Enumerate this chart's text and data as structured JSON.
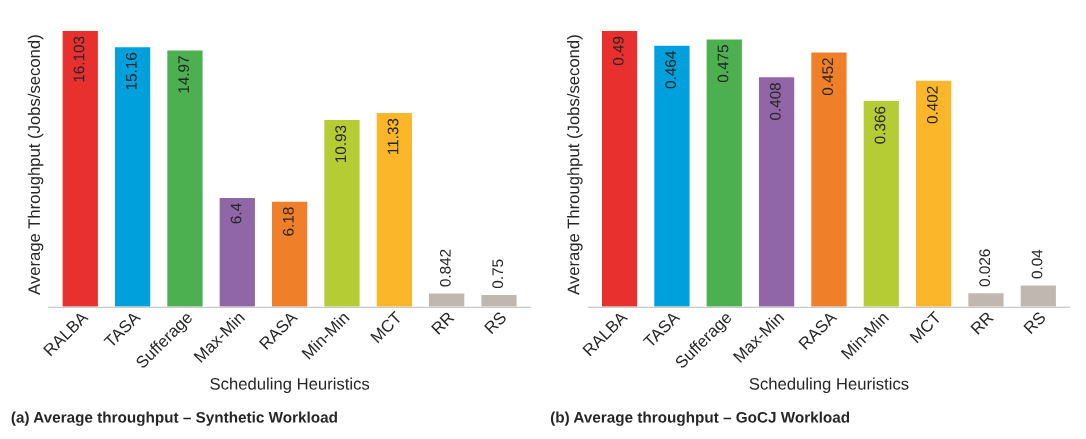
{
  "chart_data": [
    {
      "type": "bar",
      "title": "(a) Average throughput – Synthetic Workload",
      "xlabel": "Scheduling Heuristics",
      "ylabel": "Average Throughput (Jobs/second)",
      "categories": [
        "RALBA",
        "TASA",
        "Sufferage",
        "Max-Min",
        "RASA",
        "Min-Min",
        "MCT",
        "RR",
        "RS"
      ],
      "values": [
        16.103,
        15.16,
        14.97,
        6.4,
        6.18,
        10.93,
        11.33,
        0.842,
        0.75
      ],
      "colors": [
        "#e8312f",
        "#00a0dc",
        "#4caf50",
        "#9066a6",
        "#f07f2a",
        "#b5cc34",
        "#fbb62a",
        "#c0b8b0",
        "#c0b8b0"
      ],
      "data_labels": true,
      "tick_labels": "x",
      "grid": false,
      "legend": false
    },
    {
      "type": "bar",
      "title": "(b) Average throughput – GoCJ Workload",
      "xlabel": "Scheduling Heuristics",
      "ylabel": "Average Throughput (Jobs/second)",
      "categories": [
        "RALBA",
        "TASA",
        "Sufferage",
        "Max-Min",
        "RASA",
        "Min-Min",
        "MCT",
        "RR",
        "RS"
      ],
      "values": [
        0.49,
        0.464,
        0.475,
        0.408,
        0.452,
        0.366,
        0.402,
        0.026,
        0.04
      ],
      "colors": [
        "#e8312f",
        "#00a0dc",
        "#4caf50",
        "#9066a6",
        "#f07f2a",
        "#b5cc34",
        "#fbb62a",
        "#c0b8b0",
        "#c0b8b0"
      ],
      "data_labels": true,
      "tick_labels": "x",
      "grid": false,
      "legend": false
    }
  ]
}
